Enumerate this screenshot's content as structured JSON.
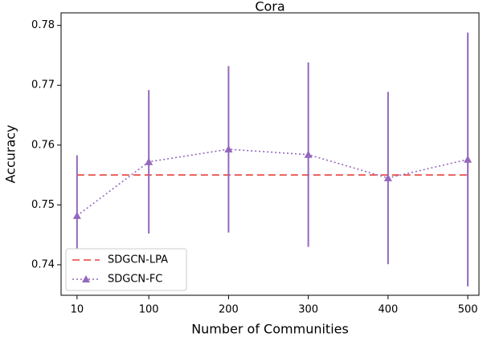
{
  "chart_data": {
    "type": "line",
    "title": "Cora",
    "xlabel": "Number of Communities",
    "ylabel": "Accuracy",
    "x": [
      10,
      100,
      200,
      300,
      400,
      500
    ],
    "xlim": [
      -10,
      514
    ],
    "xticks": [
      10,
      100,
      200,
      300,
      400,
      500
    ],
    "ylim": [
      0.7349,
      0.7821
    ],
    "yticks": [
      0.74,
      0.75,
      0.76,
      0.77,
      0.78
    ],
    "legend": "lower left",
    "series": [
      {
        "name": "SDGCN-LPA",
        "color": "#e8413b",
        "linestyle": "dashed",
        "values": [
          0.755,
          0.755,
          0.755,
          0.755,
          0.755,
          0.755
        ]
      },
      {
        "name": "SDGCN-FC",
        "color": "#9467bd",
        "linestyle": "dotted",
        "marker": "triangle",
        "values": [
          0.7482,
          0.7572,
          0.7593,
          0.7584,
          0.7545,
          0.7576
        ],
        "errors": [
          0.0101,
          0.012,
          0.0139,
          0.0154,
          0.0144,
          0.0212
        ]
      }
    ]
  }
}
